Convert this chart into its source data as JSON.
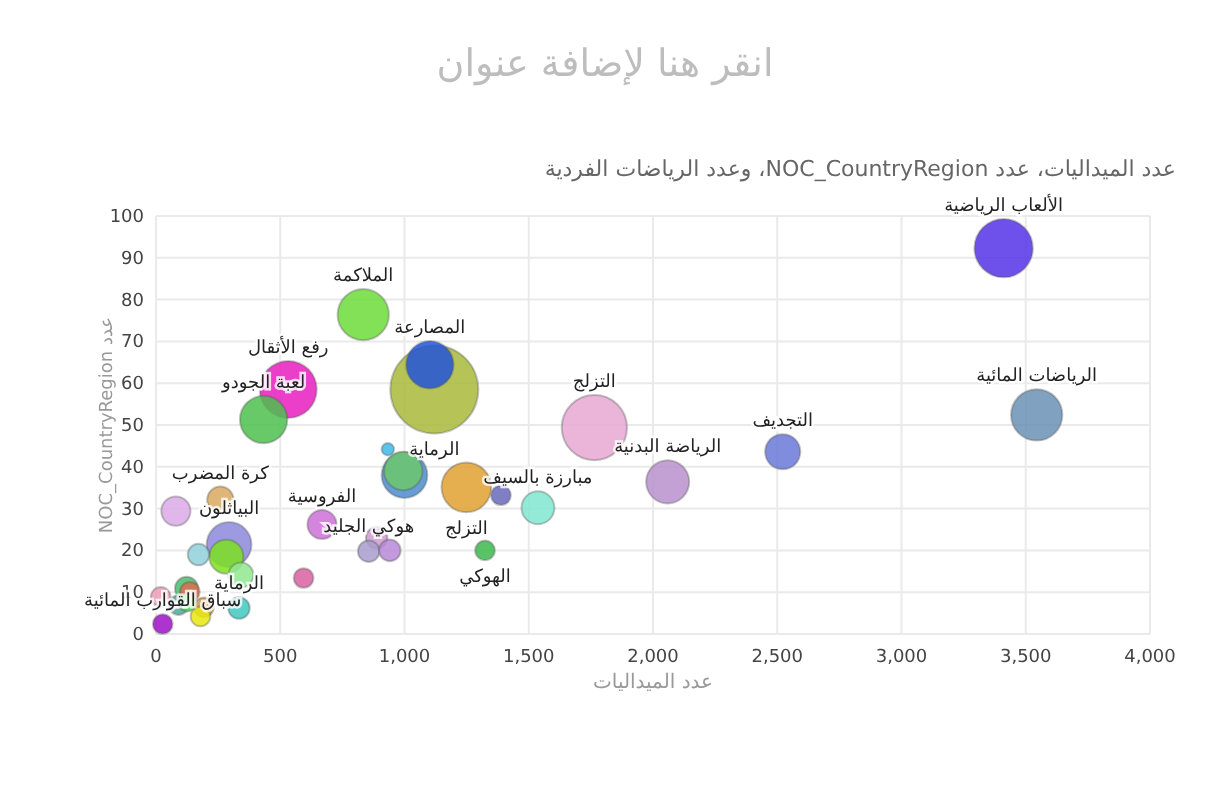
{
  "chart_data": {
    "type": "bubble",
    "title": "انقر هنا لإضافة عنوان",
    "subtitle": "عدد الميداليات، عدد NOC_CountryRegion، وعدد الرياضات الفردية",
    "xlabel": "عدد الميداليات",
    "ylabel": "عدد NOC_CountryRegion",
    "series": [
      {
        "x": [
          1120,
          1764,
          3411,
          532,
          834,
          3544,
          1102,
          1249,
          433,
          1000,
          2059,
          294,
          995,
          1537,
          2522,
          283,
          668,
          80,
          259,
          342,
          123,
          888,
          856,
          941,
          171,
          334,
          193,
          136,
          1388,
          1324,
          594,
          91,
          179,
          19,
          27,
          126,
          933
        ],
        "values": [
          58.5,
          49.4,
          92.3,
          58.5,
          76.4,
          52.4,
          64.4,
          35.1,
          51.3,
          38,
          36.4,
          21.4,
          39,
          30.2,
          43.6,
          18.5,
          26.2,
          29.4,
          32.1,
          14.1,
          10.9,
          23,
          19.8,
          20,
          19,
          6.2,
          6.4,
          10.1,
          33.2,
          20,
          13.4,
          6.9,
          4.2,
          8.9,
          2.4,
          7.5,
          44.2
        ],
        "sizes": [
          1,
          0.55,
          0.44,
          0.42,
          0.34,
          0.34,
          0.29,
          0.32,
          0.29,
          0.27,
          0.24,
          0.26,
          0.19,
          0.14,
          0.16,
          0.15,
          0.11,
          0.11,
          0.09,
          0.08,
          0.07,
          0.06,
          0.06,
          0.06,
          0.06,
          0.06,
          0.05,
          0.05,
          0.05,
          0.05,
          0.05,
          0.05,
          0.05,
          0.05,
          0.05,
          0.04,
          0.02
        ],
        "colors": [
          "#a8b83a",
          "#e8a8d4",
          "#5533e8",
          "#e81cc0",
          "#6cdc3a",
          "#6a90b4",
          "#2255d8",
          "#e0a030",
          "#4cc04c",
          "#4a8ccc",
          "#b890cc",
          "#8c88dc",
          "#6cc86c",
          "#80e8d0",
          "#6a78d8",
          "#7ee020",
          "#cc70d8",
          "#dcaae8",
          "#d8aa60",
          "#90e890",
          "#4cbc6c",
          "#cc9ccc",
          "#a89ccc",
          "#b888d8",
          "#90d0dc",
          "#40c8c0",
          "#cc9a40",
          "#dc6c50",
          "#6868bc",
          "#3cb84c",
          "#d860a0",
          "#50a898",
          "#e8e810",
          "#ec9cb4",
          "#a010c8",
          "#48d848",
          "#40b8e8"
        ]
      }
    ],
    "annotations": [
      {
        "text": "المصارعة",
        "x": 1102,
        "y": 64.4
      },
      {
        "text": "الرماية",
        "x": 1120,
        "y": 58.5
      },
      {
        "text": "التزلج",
        "x": 1764,
        "y": 49.4
      },
      {
        "text": "الألعاب الرياضية",
        "x": 3411,
        "y": 92.3
      },
      {
        "text": "رفع الأثقال",
        "x": 532,
        "y": 58.5
      },
      {
        "text": "الملاكمة",
        "x": 834,
        "y": 76.4
      },
      {
        "text": "الرياضات المائية",
        "x": 3544,
        "y": 52.4
      },
      {
        "text": "التزلج",
        "x": 1249,
        "y": 35.1
      },
      {
        "text": "لعبة الجودو",
        "x": 433,
        "y": 51.3
      },
      {
        "text": "الرياضة البدنية",
        "x": 2059,
        "y": 36.4
      },
      {
        "text": "البياثلون",
        "x": 294,
        "y": 21.4
      },
      {
        "text": "مبارزة بالسيف",
        "x": 1537,
        "y": 30.2
      },
      {
        "text": "التجديف",
        "x": 2522,
        "y": 43.6
      },
      {
        "text": "الفروسية",
        "x": 668,
        "y": 26.2
      },
      {
        "text": "كرة المضرب",
        "x": 259,
        "y": 32.1
      },
      {
        "text": "هوكي الجليد",
        "x": 856,
        "y": 19.8
      },
      {
        "text": "الرماية",
        "x": 334,
        "y": 6.2
      },
      {
        "text": "الهوكي",
        "x": 1324,
        "y": 20
      },
      {
        "text": "سباق القوارب المائية",
        "x": 27,
        "y": 2.4
      }
    ],
    "xlim": [
      0,
      4000
    ],
    "xticks": [
      0,
      {
        "value": 500,
        "label": "500"
      },
      {
        "value": 1000,
        "label": "1,000"
      },
      {
        "value": 1500,
        "label": "1,500"
      },
      {
        "value": 2000,
        "label": "2,000"
      },
      {
        "value": 2500,
        "label": "2,500"
      },
      {
        "value": 3000,
        "label": "3,000"
      },
      {
        "value": 3500,
        "label": "3,500"
      },
      {
        "value": 4000,
        "label": "4,000"
      }
    ],
    "ylim": [
      0,
      100
    ],
    "yticks": [
      0,
      10,
      20,
      30,
      40,
      50,
      60,
      70,
      80,
      90,
      100
    ],
    "grid": true
  }
}
